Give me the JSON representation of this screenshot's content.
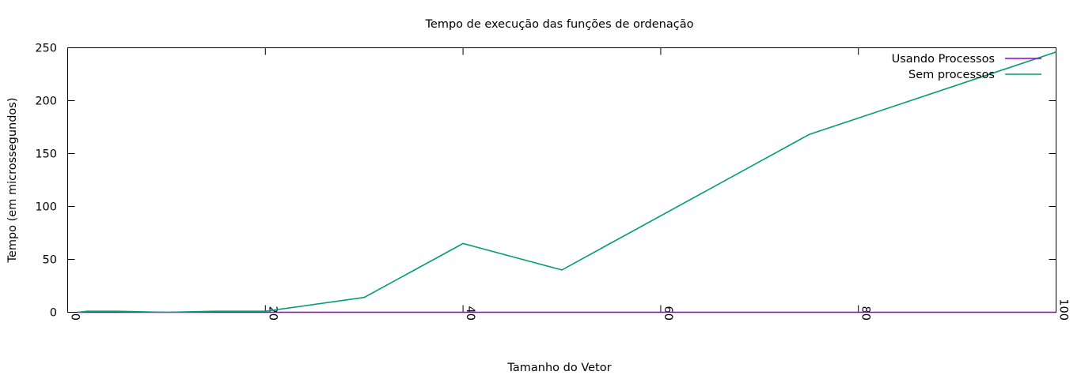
{
  "chart_data": {
    "type": "line",
    "title": "Tempo de execução das funções de ordenação",
    "xlabel": "Tamanho do Vetor",
    "ylabel": "Tempo (em microssegundos)",
    "xlim": [
      0,
      100
    ],
    "ylim": [
      0,
      250
    ],
    "xticks": [
      0,
      20,
      40,
      60,
      80,
      100
    ],
    "yticks": [
      0,
      50,
      100,
      150,
      200,
      250
    ],
    "grid": false,
    "legend_position": "top-right",
    "series": [
      {
        "name": "Usando Processos",
        "color": "#9400d3",
        "x": [
          1,
          2,
          5,
          10,
          15,
          20,
          30,
          40,
          50,
          75,
          100
        ],
        "y": [
          0,
          0,
          0,
          0,
          0,
          0,
          0,
          0,
          0,
          0,
          0
        ]
      },
      {
        "name": "Sem processos",
        "color": "#009e73",
        "x": [
          1,
          2,
          5,
          10,
          15,
          20,
          30,
          40,
          50,
          75,
          100
        ],
        "y": [
          0,
          1,
          1,
          0,
          1,
          1,
          14,
          65,
          40,
          168,
          246
        ]
      }
    ]
  }
}
